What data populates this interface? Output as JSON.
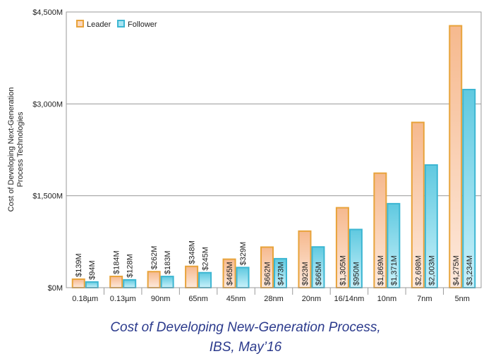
{
  "caption": {
    "line1": "Cost of Developing New-Generation Process,",
    "line2": "IBS, May’16"
  },
  "chart_data": {
    "type": "bar",
    "ylabel_line1": "Cost of Developing  Next-Generation",
    "ylabel_line2": "Process Technologies",
    "ylim": [
      0,
      4500
    ],
    "yticks": [
      0,
      1500,
      3000,
      4500
    ],
    "ytick_labels": [
      "$0M",
      "$1,500M",
      "$3,000M",
      "$4,500M"
    ],
    "grid": true,
    "legend_position": "top-left",
    "categories": [
      "0.18µm",
      "0.13µm",
      "90nm",
      "65nm",
      "45nm",
      "28nm",
      "20nm",
      "16/14nm",
      "10nm",
      "7nm",
      "5nm"
    ],
    "series": [
      {
        "name": "Leader",
        "color": "#e8a33a",
        "values": [
          139,
          184,
          262,
          348,
          465,
          662,
          923,
          1305,
          1869,
          2698,
          4275
        ],
        "labels": [
          "$139M",
          "$184M",
          "$262M",
          "$348M",
          "$465M",
          "$662M",
          "$923M",
          "$1,305M",
          "$1,869M",
          "$2,698M",
          "$4,275M"
        ]
      },
      {
        "name": "Follower",
        "color": "#3cb6d2",
        "values": [
          94,
          128,
          183,
          245,
          329,
          473,
          665,
          950,
          1371,
          2003,
          3234
        ],
        "labels": [
          "$94M",
          "$128M",
          "$183M",
          "$245M",
          "$329M",
          "$473M",
          "$665M",
          "$950M",
          "$1,371M",
          "$2,003M",
          "$3,234M"
        ]
      }
    ]
  }
}
